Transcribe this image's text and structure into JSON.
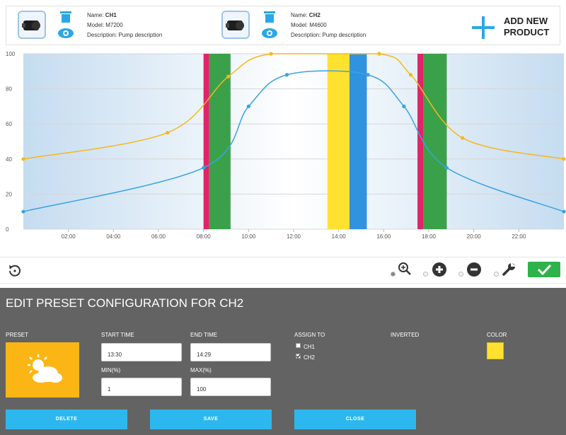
{
  "products": [
    {
      "name_label": "Name:",
      "name": "CH1",
      "model": "Model: M7200",
      "description": "Description: Pump description"
    },
    {
      "name_label": "Name:",
      "name": "CH2",
      "model": "Model: M4600",
      "description": "Description: Pump description"
    }
  ],
  "add_new": {
    "line1": "ADD NEW",
    "line2": "PRODUCT"
  },
  "chart_data": {
    "type": "line",
    "x_ticks": [
      "02:00",
      "04:00",
      "06:00",
      "08:00",
      "10:00",
      "12:00",
      "14:00",
      "16:00",
      "18:00",
      "20:00",
      "22:00"
    ],
    "y_ticks": [
      "0",
      "20",
      "40",
      "60",
      "80",
      "100"
    ],
    "ylim": [
      0,
      100
    ],
    "xlim_hours": [
      0,
      24
    ],
    "grid": true,
    "series": [
      {
        "color": "#f5b81c",
        "points": [
          [
            0,
            40
          ],
          [
            6.4,
            55
          ],
          [
            9.1,
            87
          ],
          [
            11,
            100
          ],
          [
            15.8,
            100
          ],
          [
            17.2,
            88
          ],
          [
            19.5,
            52
          ],
          [
            24,
            40
          ]
        ]
      },
      {
        "color": "#3aa3e0",
        "points": [
          [
            0,
            10
          ],
          [
            8,
            35
          ],
          [
            10,
            70
          ],
          [
            11.7,
            88
          ],
          [
            15.3,
            88
          ],
          [
            16.9,
            70
          ],
          [
            18.8,
            35
          ],
          [
            24,
            10
          ]
        ]
      }
    ],
    "bands": [
      {
        "start": 8.0,
        "end": 8.25,
        "color": "#e2236a"
      },
      {
        "start": 8.25,
        "end": 9.2,
        "color": "#3aa14a"
      },
      {
        "start": 13.5,
        "end": 14.48,
        "color": "#ffe22f"
      },
      {
        "start": 14.48,
        "end": 15.25,
        "color": "#2f93e0"
      },
      {
        "start": 17.5,
        "end": 17.75,
        "color": "#e2236a"
      },
      {
        "start": 17.75,
        "end": 18.8,
        "color": "#3aa14a"
      }
    ]
  },
  "panel": {
    "title": "EDIT PRESET CONFIGURATION FOR CH2",
    "preset_label": "PRESET",
    "start_time_label": "START TIME",
    "start_time": "13:30",
    "end_time_label": "END TIME",
    "end_time": "14:29",
    "min_label": "MIN(%)",
    "min": "1",
    "max_label": "MAX(%)",
    "max": "100",
    "assign_label": "ASSIGN TO",
    "assign_options": [
      {
        "label": "CH1",
        "checked": false
      },
      {
        "label": "CH2",
        "checked": true
      }
    ],
    "inverted_label": "INVERTED",
    "color_label": "COLOR",
    "color_value": "#ffe22f",
    "buttons": {
      "delete": "DELETE",
      "save": "SAVE",
      "close": "CLOSE"
    }
  },
  "colors": {
    "accent": "#2cb8ee",
    "confirm": "#2db34a",
    "panel_bg": "#636363"
  }
}
